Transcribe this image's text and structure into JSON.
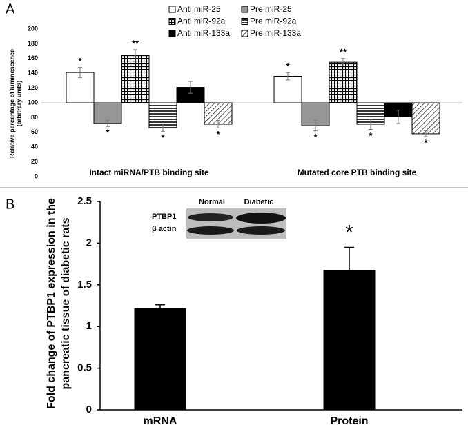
{
  "chart_data": [
    {
      "type": "bar",
      "panel": "A",
      "y_label": [
        "Relative percentage of luminescence",
        "(arbitrary units)"
      ],
      "categories": [
        "Intact miRNA/PTB binding site",
        "Mutated core PTB binding site"
      ],
      "baseline": 100,
      "series": [
        {
          "name": "Anti miR-25",
          "color": "#ffffff",
          "values": [
            141,
            136
          ],
          "errors": [
            7,
            5
          ],
          "significance": [
            "*",
            "*"
          ]
        },
        {
          "name": "Pre miR-25",
          "color": "#969696",
          "values": [
            72,
            69
          ],
          "errors": [
            4,
            7
          ],
          "significance": [
            "*",
            "*"
          ]
        },
        {
          "name": "Anti miR-92a",
          "color": "#000000",
          "pattern": "grid",
          "values": [
            164,
            155
          ],
          "errors": [
            8,
            5
          ],
          "significance": [
            "**",
            "**"
          ]
        },
        {
          "name": "Pre miR-92a",
          "color": "#000000",
          "pattern": "hstripes",
          "values": [
            66,
            71
          ],
          "errors": [
            5,
            7
          ],
          "significance": [
            "*",
            "*"
          ]
        },
        {
          "name": "Anti miR-133a",
          "color": "#000000",
          "values": [
            121,
            81
          ],
          "errors": [
            8,
            9
          ],
          "significance": [
            null,
            null
          ]
        },
        {
          "name": "Pre miR-133a",
          "color": "#000000",
          "pattern": "diagonal",
          "values": [
            71,
            58
          ],
          "errors": [
            5,
            4
          ],
          "significance": [
            "*",
            "*"
          ]
        }
      ],
      "ylim": [
        0,
        200
      ],
      "yticks": [
        0,
        20,
        40,
        60,
        80,
        100,
        120,
        140,
        160,
        180,
        200
      ]
    },
    {
      "type": "bar",
      "panel": "B",
      "y_label": [
        "Fold change of PTBP1 expression in the",
        "pancreatic tissue of diabetic rats"
      ],
      "categories": [
        "mRNA",
        "Protein"
      ],
      "values": [
        1.22,
        1.68
      ],
      "errors": [
        0.04,
        0.27
      ],
      "significance": [
        null,
        "*"
      ],
      "color": "#000000",
      "ylim": [
        0,
        2.5
      ],
      "yticks": [
        0,
        0.5,
        1,
        1.5,
        2,
        2.5
      ],
      "inset": {
        "column_labels": [
          "Normal",
          "Diabetic"
        ],
        "row_labels": [
          "PTBP1",
          "β actin"
        ]
      }
    }
  ]
}
